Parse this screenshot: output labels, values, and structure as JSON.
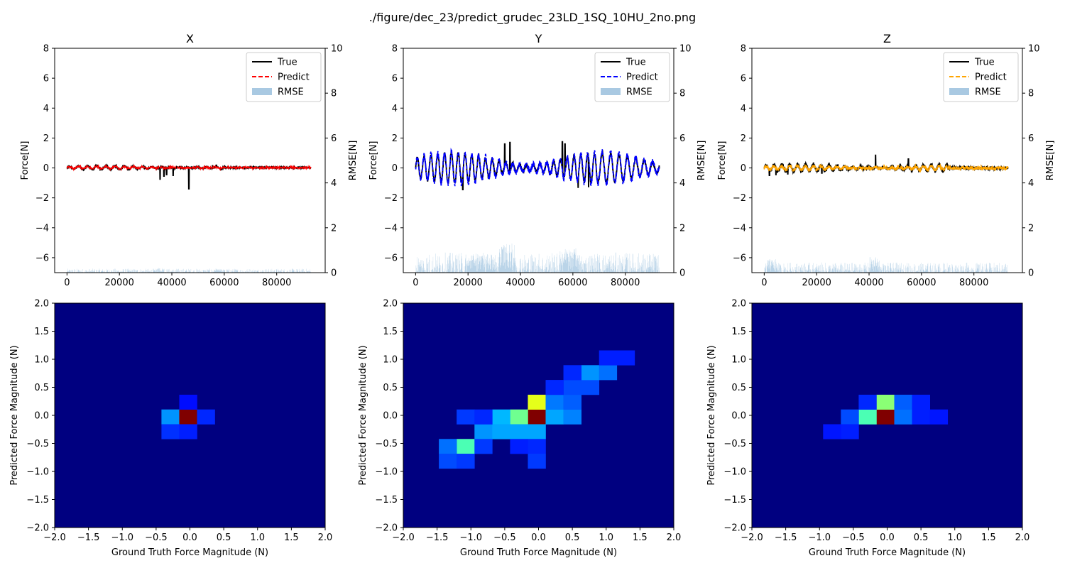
{
  "figure": {
    "title": "./figure/dec_23/predict_grudec_23LD_1SQ_10HU_2no.png"
  },
  "colors": {
    "true": "#000000",
    "rmse": "#a9c9e2"
  },
  "chart_data": [
    {
      "type": "line",
      "name": "time-x",
      "title": "X",
      "ylabel": "Force[N]",
      "y2label": "RMSE[N]",
      "xlim": [
        -4700,
        98500
      ],
      "ylim": [
        -7,
        8
      ],
      "y2lim": [
        0,
        10
      ],
      "xticks": [
        0,
        20000,
        40000,
        60000,
        80000
      ],
      "yticks": [
        -6,
        -4,
        -2,
        0,
        2,
        4,
        6,
        8
      ],
      "y2ticks": [
        0,
        2,
        4,
        6,
        8,
        10
      ],
      "legend": [
        "True",
        "Predict",
        "RMSE"
      ],
      "legend_loc": "upper right",
      "predict_color": "#ff0000",
      "n": 93000,
      "true_base": 0.02,
      "true_amp": 0.12,
      "true_noise": 0.03,
      "pred_amp": 0.09,
      "pred_noise": 0.06,
      "osc": [
        [
          0,
          60000,
          3500
        ]
      ],
      "spikes": [
        [
          35500,
          -0.75
        ],
        [
          37000,
          -0.55
        ],
        [
          38000,
          -0.45
        ],
        [
          40500,
          -0.5
        ],
        [
          46500,
          -1.4
        ],
        [
          55500,
          0.15
        ],
        [
          57000,
          0.18
        ]
      ],
      "rmse_max": 0.18,
      "rmse_bumps": [
        [
          34000,
          37000,
          0.22
        ],
        [
          56000,
          60000,
          0.15
        ]
      ]
    },
    {
      "type": "line",
      "name": "time-y",
      "title": "Y",
      "ylabel": "Force[N]",
      "y2label": "RMSE[N]",
      "xlim": [
        -4700,
        98500
      ],
      "ylim": [
        -7,
        8
      ],
      "y2lim": [
        0,
        10
      ],
      "xticks": [
        0,
        20000,
        40000,
        60000,
        80000
      ],
      "yticks": [
        -6,
        -4,
        -2,
        0,
        2,
        4,
        6,
        8
      ],
      "y2ticks": [
        0,
        2,
        4,
        6,
        8,
        10
      ],
      "legend": [
        "True",
        "Predict",
        "RMSE"
      ],
      "legend_loc": "upper right",
      "predict_color": "#0000ff",
      "n": 93000,
      "true_base": 0.0,
      "true_amp": 1.0,
      "true_noise": 0.12,
      "pred_amp": 1.1,
      "pred_noise": 0.2,
      "osc": [
        [
          0,
          70000,
          2600
        ],
        [
          70000,
          93000,
          3200
        ]
      ],
      "spikes": [
        [
          34000,
          1.6
        ],
        [
          36000,
          1.7
        ],
        [
          56000,
          1.75
        ],
        [
          57000,
          1.6
        ],
        [
          18000,
          -1.45
        ],
        [
          62000,
          -1.3
        ],
        [
          66000,
          -1.25
        ]
      ],
      "rmse_max": 0.9,
      "rmse_bumps": [
        [
          32000,
          38000,
          1.3
        ],
        [
          55000,
          62000,
          1.1
        ],
        [
          20000,
          30000,
          0.8
        ]
      ]
    },
    {
      "type": "line",
      "name": "time-z",
      "title": "Z",
      "ylabel": "Force[N]",
      "y2label": "RMSE[N]",
      "xlim": [
        -4700,
        98500
      ],
      "ylim": [
        -7,
        8
      ],
      "y2lim": [
        0,
        10
      ],
      "xticks": [
        0,
        20000,
        40000,
        60000,
        80000
      ],
      "yticks": [
        -6,
        -4,
        -2,
        0,
        2,
        4,
        6,
        8
      ],
      "y2ticks": [
        0,
        2,
        4,
        6,
        8,
        10
      ],
      "legend": [
        "True",
        "Predict",
        "RMSE"
      ],
      "legend_loc": "upper right",
      "predict_color": "#ffa500",
      "n": 93000,
      "true_base": 0.0,
      "true_amp": 0.25,
      "true_noise": 0.1,
      "pred_amp": 0.15,
      "pred_noise": 0.12,
      "osc": [
        [
          0,
          70000,
          3000
        ]
      ],
      "spikes": [
        [
          42500,
          0.85
        ],
        [
          55000,
          0.6
        ],
        [
          2000,
          -0.5
        ],
        [
          4500,
          -0.45
        ],
        [
          9000,
          -0.4
        ],
        [
          22000,
          -0.35
        ]
      ],
      "rmse_max": 0.45,
      "rmse_bumps": [
        [
          40000,
          44000,
          0.7
        ],
        [
          1000,
          5000,
          0.6
        ]
      ]
    },
    {
      "type": "heatmap",
      "name": "heat-x",
      "xlabel": "Ground Truth Force Magnitude (N)",
      "ylabel": "Predicted Force Magnitude (N)",
      "xlim": [
        -2,
        2
      ],
      "ylim": [
        -2,
        2
      ],
      "bins": [
        -2,
        -1.737,
        -1.474,
        -1.211,
        -0.947,
        -0.684,
        -0.421,
        -0.158,
        0.105,
        0.368,
        0.632,
        0.895,
        1.158,
        1.421,
        1.684,
        1.947,
        2
      ],
      "ticks": [
        -2.0,
        -1.5,
        -1.0,
        -0.5,
        0.0,
        0.5,
        1.0,
        1.5,
        2.0
      ],
      "cells": [
        [
          -0.3,
          0.0,
          0.18
        ],
        [
          0.0,
          0.0,
          1.0
        ],
        [
          0.3,
          0.0,
          0.06
        ],
        [
          -0.3,
          -0.3,
          0.07
        ],
        [
          0.0,
          -0.3,
          0.05
        ],
        [
          0.0,
          0.3,
          0.03
        ]
      ]
    },
    {
      "type": "heatmap",
      "name": "heat-y",
      "xlabel": "Ground Truth Force Magnitude (N)",
      "ylabel": "Predicted Force Magnitude (N)",
      "xlim": [
        -2,
        2
      ],
      "ylim": [
        -2,
        2
      ],
      "bins": [
        -2,
        -1.737,
        -1.474,
        -1.211,
        -0.947,
        -0.684,
        -0.421,
        -0.158,
        0.105,
        0.368,
        0.632,
        0.895,
        1.158,
        1.421,
        1.684,
        1.947,
        2
      ],
      "ticks": [
        -2.0,
        -1.5,
        -1.0,
        -0.5,
        0.0,
        0.5,
        1.0,
        1.5,
        2.0
      ],
      "cells": [
        [
          0.0,
          0.0,
          1.0
        ],
        [
          0.0,
          0.3,
          0.55
        ],
        [
          -0.3,
          0.0,
          0.42
        ],
        [
          -1.1,
          -0.55,
          0.38
        ],
        [
          -0.55,
          0.0,
          0.22
        ],
        [
          0.3,
          0.0,
          0.2
        ],
        [
          0.55,
          0.0,
          0.16
        ],
        [
          -0.8,
          -0.3,
          0.18
        ],
        [
          -0.55,
          -0.3,
          0.2
        ],
        [
          -0.3,
          -0.3,
          0.2
        ],
        [
          -0.05,
          -0.3,
          0.2
        ],
        [
          0.3,
          0.3,
          0.15
        ],
        [
          0.55,
          0.3,
          0.12
        ],
        [
          0.8,
          0.55,
          0.1
        ],
        [
          0.8,
          0.8,
          0.18
        ],
        [
          1.05,
          0.8,
          0.14
        ],
        [
          0.55,
          0.55,
          0.1
        ],
        [
          -1.3,
          -0.55,
          0.14
        ],
        [
          -1.3,
          -0.8,
          0.1
        ],
        [
          -1.05,
          -0.8,
          0.08
        ],
        [
          -1.05,
          0.0,
          0.08
        ],
        [
          -0.8,
          0.0,
          0.06
        ],
        [
          0.3,
          0.55,
          0.06
        ],
        [
          0.55,
          0.8,
          0.06
        ],
        [
          1.05,
          1.05,
          0.05
        ],
        [
          1.3,
          1.05,
          0.05
        ],
        [
          -0.05,
          -0.55,
          0.06
        ],
        [
          0.05,
          -0.8,
          0.08
        ],
        [
          -0.3,
          -0.55,
          0.05
        ],
        [
          -0.8,
          -0.55,
          0.08
        ]
      ]
    },
    {
      "type": "heatmap",
      "name": "heat-z",
      "xlabel": "Ground Truth Force Magnitude (N)",
      "ylabel": "Predicted Force Magnitude (N)",
      "xlim": [
        -2,
        2
      ],
      "ylim": [
        -2,
        2
      ],
      "bins": [
        -2,
        -1.737,
        -1.474,
        -1.211,
        -0.947,
        -0.684,
        -0.421,
        -0.158,
        0.105,
        0.368,
        0.632,
        0.895,
        1.158,
        1.421,
        1.684,
        1.947,
        2
      ],
      "ticks": [
        -2.0,
        -1.5,
        -1.0,
        -0.5,
        0.0,
        0.5,
        1.0,
        1.5,
        2.0
      ],
      "cells": [
        [
          0.0,
          0.0,
          1.0
        ],
        [
          0.0,
          0.3,
          0.45
        ],
        [
          -0.3,
          0.0,
          0.38
        ],
        [
          0.3,
          0.0,
          0.14
        ],
        [
          0.3,
          0.3,
          0.12
        ],
        [
          -0.55,
          0.0,
          0.1
        ],
        [
          -0.3,
          0.3,
          0.06
        ],
        [
          0.55,
          0.3,
          0.05
        ],
        [
          -0.55,
          -0.3,
          0.05
        ],
        [
          -0.8,
          -0.3,
          0.04
        ],
        [
          0.55,
          0.0,
          0.05
        ],
        [
          0.8,
          0.0,
          0.04
        ]
      ]
    }
  ]
}
